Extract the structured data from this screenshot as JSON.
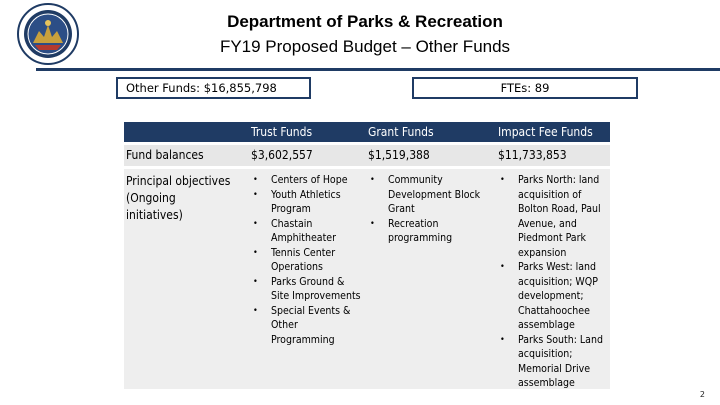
{
  "header": {
    "title": "Department of Parks & Recreation",
    "subtitle": "FY19 Proposed Budget – Other Funds",
    "seal_icon": "city-seal-icon"
  },
  "summary": {
    "other_funds": "Other Funds: $16,855,798",
    "ftes": "FTEs: 89"
  },
  "table": {
    "columns": [
      "",
      "Trust Funds",
      "Grant Funds",
      "Impact Fee Funds"
    ],
    "fund_balances": {
      "label": "Fund balances",
      "values": [
        "$3,602,557",
        "$1,519,388",
        "$11,733,853"
      ]
    },
    "objectives": {
      "label_line1": "Principal objectives",
      "label_line2": "(Ongoing",
      "label_line3": "initiatives)",
      "trust": [
        "Centers of Hope",
        "Youth Athletics Program",
        "Chastain Amphitheater",
        "Tennis Center Operations",
        "Parks Ground & Site Improvements",
        "Special Events & Other Programming"
      ],
      "grant": [
        "Community Development Block Grant",
        "Recreation programming"
      ],
      "impact": [
        "Parks North: land acquisition of Bolton Road, Paul Avenue, and Piedmont Park expansion",
        "Parks West: land acquisition; WQP development; Chattahoochee assemblage",
        "Parks South: Land acquisition; Memorial Drive assemblage"
      ]
    }
  },
  "footer": {
    "page_number": "2"
  },
  "colors": {
    "navy": "#1F3B64",
    "row_gray": "#E7E7E7"
  }
}
